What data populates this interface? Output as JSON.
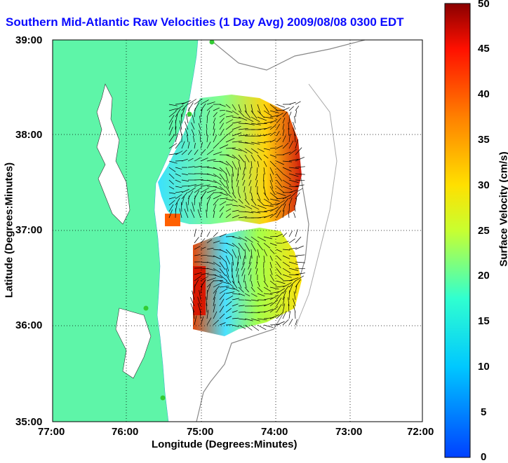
{
  "title": "Southern Mid-Atlantic Raw Velocities (1 Day Avg) 2009/08/08 0300 EDT",
  "chart_data": {
    "type": "heatmap",
    "xlabel": "Longitude (Degrees:Minutes)",
    "ylabel": "Latitude (Degrees:Minutes)",
    "xticks": [
      "77:00",
      "76:00",
      "75:00",
      "74:00",
      "73:00",
      "72:00"
    ],
    "yticks": [
      "39:00",
      "38:00",
      "37:00",
      "36:00",
      "35:00"
    ],
    "xlim": [
      -77,
      -72
    ],
    "ylim": [
      35,
      39
    ],
    "colorbar": {
      "label": "Surface Velocity (cm/s)",
      "ticks": [
        "50",
        "45",
        "40",
        "35",
        "30",
        "25",
        "20",
        "15",
        "10",
        "5",
        "0"
      ],
      "range": [
        0,
        50
      ]
    },
    "land_color": "#5ef5a8",
    "grid": "dotted"
  }
}
